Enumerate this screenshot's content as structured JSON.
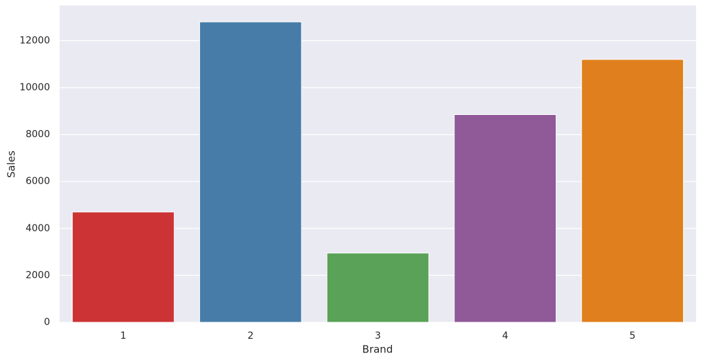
{
  "chart_data": {
    "type": "bar",
    "categories": [
      "1",
      "2",
      "3",
      "4",
      "5"
    ],
    "values": [
      4700,
      12800,
      2950,
      8850,
      11200
    ],
    "colors": [
      "#cb3335",
      "#477ca8",
      "#59a257",
      "#905998",
      "#e07f1d"
    ],
    "xlabel": "Brand",
    "ylabel": "Sales",
    "ylim": [
      0,
      13500
    ],
    "yticks": [
      0,
      2000,
      4000,
      6000,
      8000,
      10000,
      12000
    ],
    "grid": true
  }
}
